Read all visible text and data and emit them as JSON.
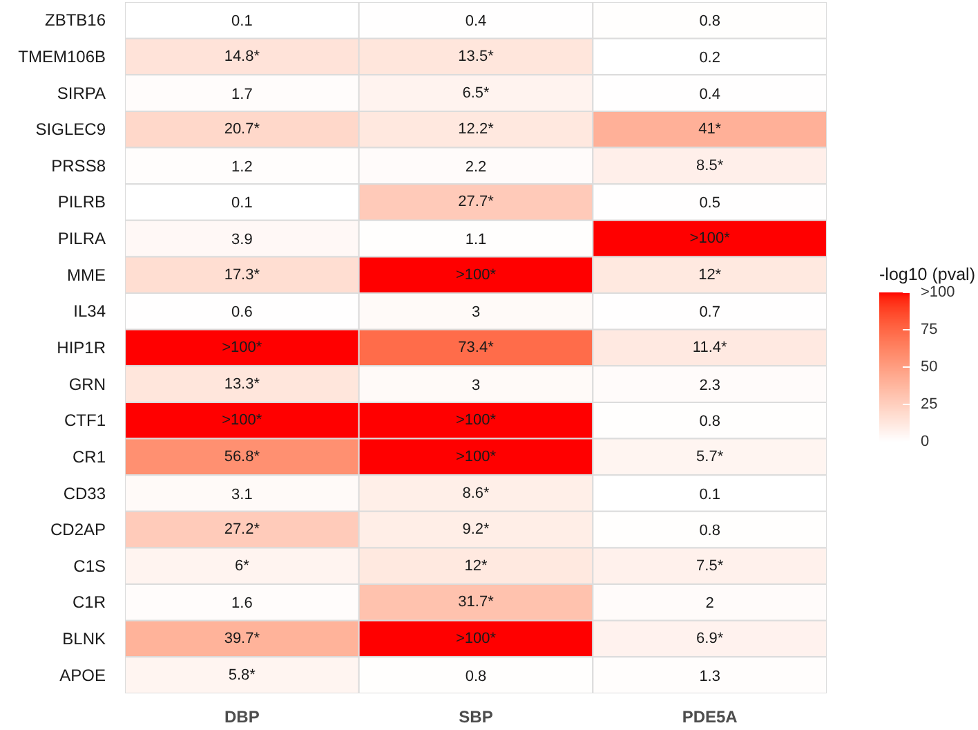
{
  "chart_data": {
    "type": "heatmap",
    "categories": [
      "DBP",
      "SBP",
      "PDE5A"
    ],
    "y_categories": [
      "ZBTB16",
      "TMEM106B",
      "SIRPA",
      "SIGLEC9",
      "PRSS8",
      "PILRB",
      "PILRA",
      "MME",
      "IL34",
      "HIP1R",
      "GRN",
      "CTF1",
      "CR1",
      "CD33",
      "CD2AP",
      "C1S",
      "C1R",
      "BLNK",
      "APOE"
    ],
    "cells": [
      [
        0.1,
        0.4,
        0.8
      ],
      [
        14.8,
        13.5,
        0.2
      ],
      [
        1.7,
        6.5,
        0.4
      ],
      [
        20.7,
        12.2,
        41
      ],
      [
        1.2,
        2.2,
        8.5
      ],
      [
        0.1,
        27.7,
        0.5
      ],
      [
        3.9,
        1.1,
        100
      ],
      [
        17.3,
        100,
        12
      ],
      [
        0.6,
        3,
        0.7
      ],
      [
        100,
        73.4,
        11.4
      ],
      [
        13.3,
        3,
        2.3
      ],
      [
        100,
        100,
        0.8
      ],
      [
        56.8,
        100,
        5.7
      ],
      [
        3.1,
        8.6,
        0.1
      ],
      [
        27.2,
        9.2,
        0.8
      ],
      [
        6,
        12,
        7.5
      ],
      [
        1.6,
        31.7,
        2
      ],
      [
        39.7,
        100,
        6.9
      ],
      [
        5.8,
        0.8,
        1.3
      ]
    ],
    "cell_labels": [
      [
        "0.1",
        "0.4",
        "0.8"
      ],
      [
        "14.8*",
        "13.5*",
        "0.2"
      ],
      [
        "1.7",
        "6.5*",
        "0.4"
      ],
      [
        "20.7*",
        "12.2*",
        "41*"
      ],
      [
        "1.2",
        "2.2",
        "8.5*"
      ],
      [
        "0.1",
        "27.7*",
        "0.5"
      ],
      [
        "3.9",
        "1.1",
        ">100*"
      ],
      [
        "17.3*",
        ">100*",
        "12*"
      ],
      [
        "0.6",
        "3",
        "0.7"
      ],
      [
        ">100*",
        "73.4*",
        "11.4*"
      ],
      [
        "13.3*",
        "3",
        "2.3"
      ],
      [
        ">100*",
        ">100*",
        "0.8"
      ],
      [
        "56.8*",
        ">100*",
        "5.7*"
      ],
      [
        "3.1",
        "8.6*",
        "0.1"
      ],
      [
        "27.2*",
        "9.2*",
        "0.8"
      ],
      [
        "6*",
        "12*",
        "7.5*"
      ],
      [
        "1.6",
        "31.7*",
        "2"
      ],
      [
        "39.7*",
        ">100*",
        "6.9*"
      ],
      [
        "5.8*",
        "0.8",
        "1.3"
      ]
    ],
    "clim": [
      0,
      100
    ],
    "cticks": [
      0,
      25,
      50,
      75,
      {
        "value": 100,
        "label": ">100"
      }
    ],
    "clabel": "-log10 (pval)",
    "colors": [
      "#ffffff",
      "#ff0000"
    ]
  }
}
